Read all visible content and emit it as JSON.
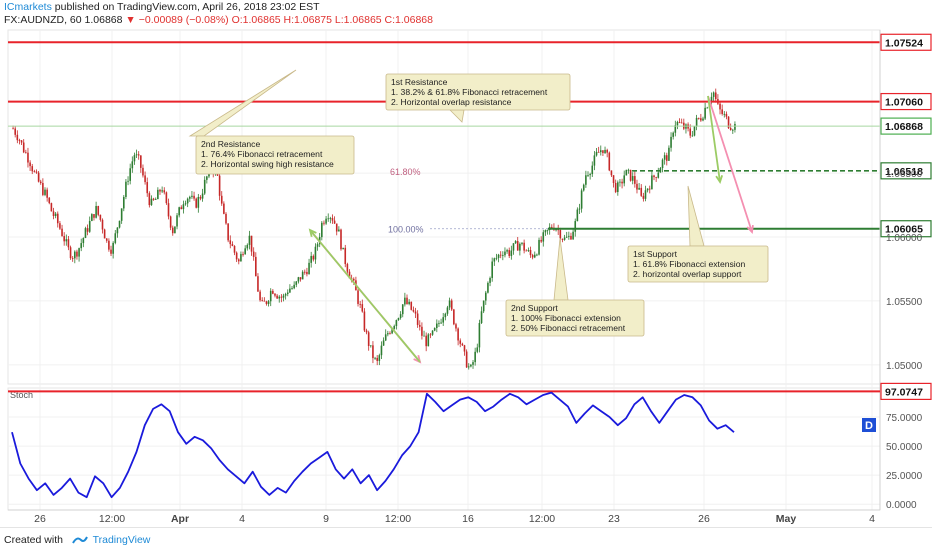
{
  "header": {
    "author": "ICmarkets",
    "published_text": "published on TradingView.com, April 26, 2018 23:02 EST",
    "symbol": "FX:AUDNZD, 60",
    "last": "1.06868",
    "change": "−0.00089 (−0.08%)",
    "ohlc": "O:1.06865 H:1.06875 L:1.06865 C:1.06868"
  },
  "footer": {
    "created_with": "Created with",
    "brand": "TradingView",
    "icon": "tradingview-logo-icon"
  },
  "colors": {
    "up": "#2e7d32",
    "down": "#c62828",
    "resistance": "#e8232a",
    "support": "#2e7d32",
    "stoch": "#1a1adc",
    "price_tag": "#ffffff",
    "annotation_bg": "#f2eec9"
  },
  "chart_data": {
    "type": "candlestick",
    "x_ticks": [
      "26",
      "12:00",
      "Apr",
      "4",
      "9",
      "12:00",
      "16",
      "12:00",
      "23",
      "26",
      "May",
      "4"
    ],
    "y_ticks": [
      "1.05000",
      "1.05500",
      "1.06000",
      "1.06500"
    ],
    "ylim": [
      1.0485,
      1.0762
    ],
    "close_path": [
      1.0685,
      1.0678,
      1.0668,
      1.066,
      1.0648,
      1.064,
      1.0632,
      1.062,
      1.0612,
      1.0602,
      1.059,
      1.0585,
      1.0592,
      1.0602,
      1.0612,
      1.0622,
      1.0612,
      1.0596,
      1.059,
      1.061,
      1.063,
      1.065,
      1.0665,
      1.0658,
      1.064,
      1.0625,
      1.063,
      1.064,
      1.062,
      1.0605,
      1.0618,
      1.063,
      1.0632,
      1.0625,
      1.0632,
      1.0645,
      1.0655,
      1.065,
      1.062,
      1.06,
      1.059,
      1.058,
      1.0595,
      1.06,
      1.057,
      1.0545,
      1.055,
      1.056,
      1.0555,
      1.0552,
      1.056,
      1.056,
      1.0568,
      1.0573,
      1.058,
      1.059,
      1.061,
      1.062,
      1.0615,
      1.0605,
      1.0585,
      1.0572,
      1.056,
      1.0545,
      1.0525,
      1.051,
      1.05,
      1.0515,
      1.0525,
      1.0532,
      1.054,
      1.055,
      1.0545,
      1.0538,
      1.0525,
      1.0518,
      1.0522,
      1.053,
      1.054,
      1.055,
      1.0535,
      1.052,
      1.0505,
      1.0495,
      1.051,
      1.054,
      1.056,
      1.058,
      1.0585,
      1.059,
      1.0588,
      1.0592,
      1.0595,
      1.059,
      1.0585,
      1.059,
      1.0598,
      1.0604,
      1.061,
      1.0605,
      1.0598,
      1.06,
      1.061,
      1.063,
      1.065,
      1.0655,
      1.0665,
      1.067,
      1.066,
      1.064,
      1.0638,
      1.065,
      1.0648,
      1.0642,
      1.063,
      1.0638,
      1.0645,
      1.0652,
      1.066,
      1.0665,
      1.069,
      1.0688,
      1.0685,
      1.068,
      1.069,
      1.0695,
      1.0705,
      1.0715,
      1.07,
      1.0695,
      1.0688,
      1.0687
    ],
    "levels": [
      {
        "label": "1.07524",
        "value": 1.07524,
        "kind": "resistance"
      },
      {
        "label": "1.07060",
        "value": 1.0706,
        "kind": "resistance"
      },
      {
        "label": "1.06868",
        "value": 1.06868,
        "kind": "last"
      },
      {
        "label": "1.06518",
        "value": 1.06518,
        "kind": "support-dashed"
      },
      {
        "label": "1.06065",
        "value": 1.06065,
        "kind": "support"
      }
    ],
    "fib_labels": [
      "61.80%",
      "100.00%"
    ],
    "annotations": [
      {
        "id": "r2",
        "title": "2nd Resistance",
        "lines": [
          "1. 76.4% Fibonacci retracement",
          "2. Horizontal swing high resistance"
        ]
      },
      {
        "id": "r1",
        "title": "1st Resistance",
        "lines": [
          "1. 38.2% & 61.8% Fibonacci retracement",
          "2. Horizontal overlap resistance"
        ]
      },
      {
        "id": "s1",
        "title": "1st Support",
        "lines": [
          "1. 61.8% Fibonacci extension",
          "2. horizontal overlap support"
        ]
      },
      {
        "id": "s2",
        "title": "2nd Support",
        "lines": [
          "1. 100% Fibonacci extension",
          "2. 50% Fibonacci retracement"
        ]
      }
    ],
    "stoch": {
      "label": "Stoch",
      "y_ticks": [
        "0.0000",
        "25.0000",
        "50.0000",
        "75.0000"
      ],
      "ylim": [
        -5,
        100
      ],
      "level": {
        "label": "97.0747",
        "value": 97.0747
      },
      "badge": "D",
      "path": [
        62,
        35,
        22,
        12,
        18,
        8,
        14,
        22,
        10,
        6,
        24,
        18,
        6,
        14,
        28,
        45,
        68,
        82,
        86,
        80,
        62,
        52,
        58,
        55,
        48,
        38,
        30,
        24,
        18,
        28,
        15,
        8,
        14,
        10,
        20,
        28,
        35,
        40,
        45,
        30,
        22,
        30,
        18,
        25,
        12,
        20,
        30,
        42,
        50,
        62,
        95,
        88,
        80,
        85,
        90,
        92,
        88,
        80,
        84,
        90,
        95,
        92,
        86,
        90,
        94,
        96,
        90,
        84,
        70,
        78,
        85,
        80,
        75,
        68,
        74,
        86,
        92,
        80,
        70,
        80,
        90,
        94,
        92,
        85,
        72,
        65,
        68,
        62
      ]
    }
  }
}
